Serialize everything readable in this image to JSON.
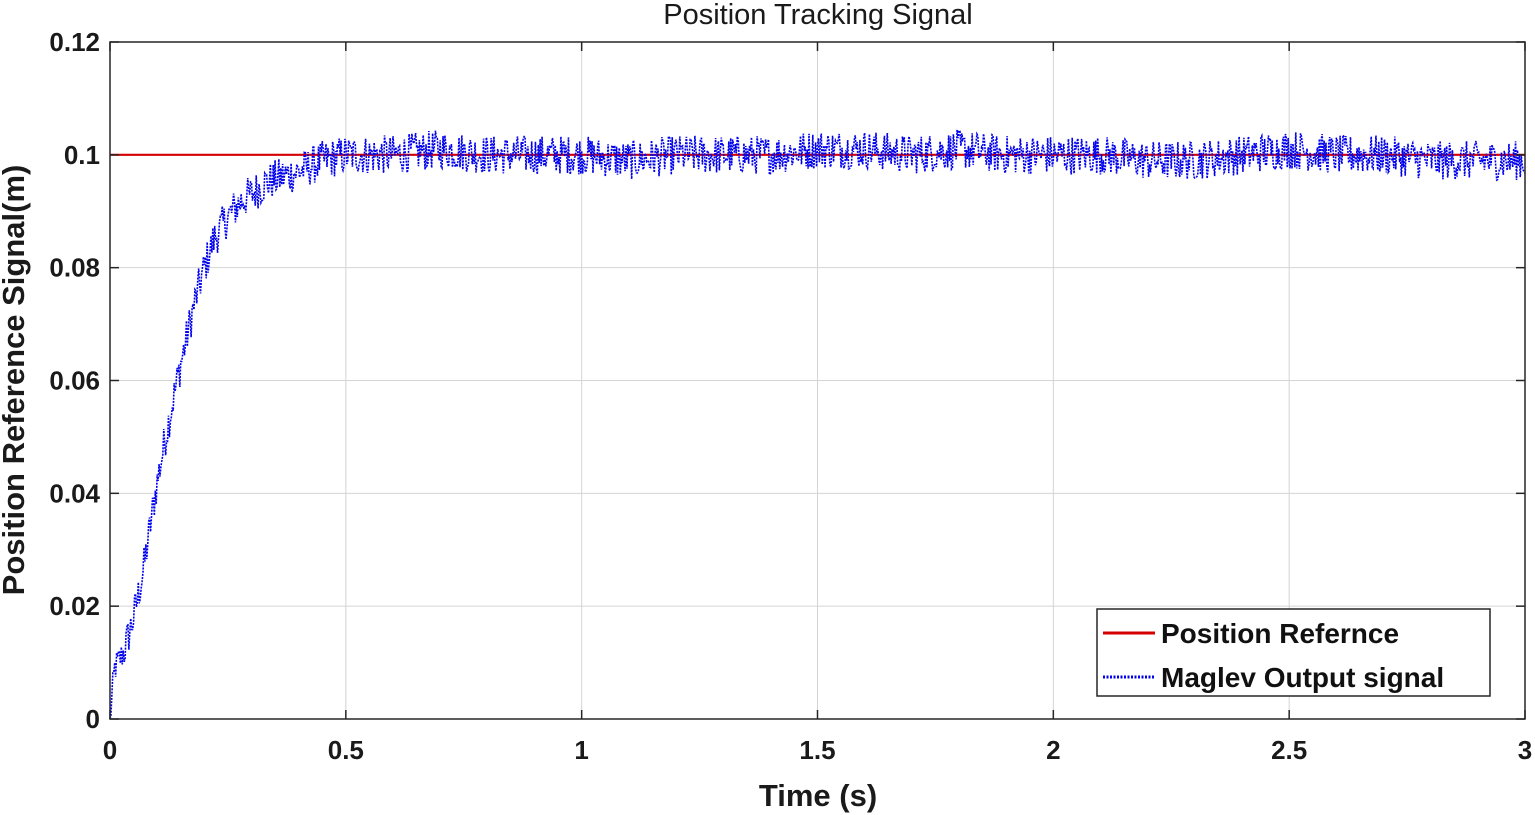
{
  "chart_data": {
    "type": "line",
    "title": "Position Tracking Signal",
    "xlabel": "Time (s)",
    "ylabel": "Position Reference Signal(m)",
    "xlim": [
      0,
      3
    ],
    "ylim": [
      0,
      0.12
    ],
    "xticks": [
      0,
      0.5,
      1,
      1.5,
      2,
      2.5,
      3
    ],
    "xtick_labels": [
      "0",
      "0.5",
      "1",
      "1.5",
      "2",
      "2.5",
      "3"
    ],
    "yticks": [
      0,
      0.02,
      0.04,
      0.06,
      0.08,
      0.1,
      0.12
    ],
    "ytick_labels": [
      "0",
      "0.02",
      "0.04",
      "0.06",
      "0.08",
      "0.1",
      "0.12"
    ],
    "grid": true,
    "legend_position": "bottom-right",
    "series": [
      {
        "name": "Position Refernce",
        "color": "#d40000",
        "style": "solid",
        "x": [
          0,
          3
        ],
        "y": [
          0.1,
          0.1
        ]
      },
      {
        "name": "Maglev Output signal",
        "color": "#0000ee",
        "style": "dotted",
        "noise_amplitude": 0.0035,
        "x": [
          0,
          0.01,
          0.03,
          0.05,
          0.07,
          0.1,
          0.12,
          0.15,
          0.18,
          0.2,
          0.22,
          0.25,
          0.28,
          0.3,
          0.33,
          0.36,
          0.4,
          0.45,
          0.5,
          0.6,
          0.7,
          0.8,
          0.9,
          1.0,
          1.1,
          1.2,
          1.3,
          1.4,
          1.5,
          1.6,
          1.7,
          1.8,
          1.9,
          2.0,
          2.1,
          2.2,
          2.3,
          2.4,
          2.5,
          2.6,
          2.7,
          2.8,
          2.9,
          3.0
        ],
        "y": [
          0.0,
          0.009,
          0.012,
          0.018,
          0.026,
          0.042,
          0.051,
          0.063,
          0.074,
          0.08,
          0.085,
          0.089,
          0.092,
          0.093,
          0.095,
          0.096,
          0.097,
          0.099,
          0.1,
          0.1,
          0.101,
          0.1,
          0.1,
          0.1,
          0.099,
          0.1,
          0.1,
          0.1,
          0.101,
          0.101,
          0.1,
          0.101,
          0.1,
          0.1,
          0.1,
          0.099,
          0.099,
          0.1,
          0.101,
          0.1,
          0.1,
          0.099,
          0.099,
          0.099
        ]
      }
    ]
  }
}
